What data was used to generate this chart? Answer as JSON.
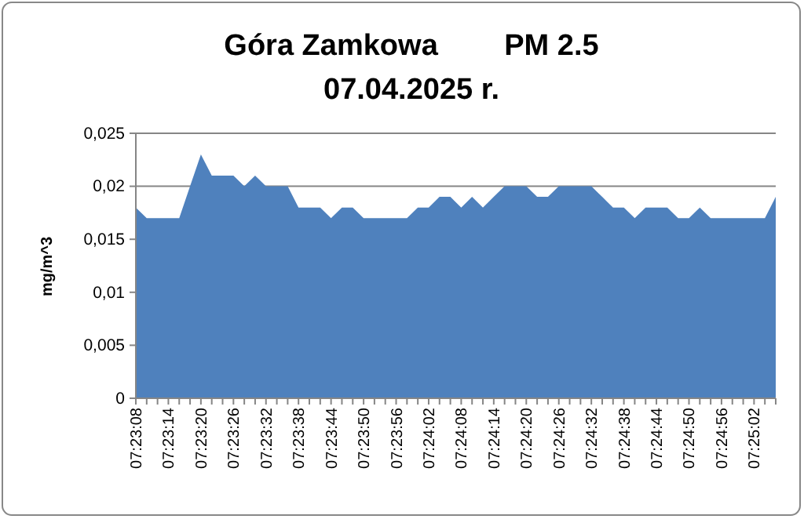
{
  "chart_data": {
    "type": "area",
    "title": "Góra Zamkowa        PM 2.5\n07.04.2025 r.",
    "ylabel": "mg/m^3",
    "categories": [
      "07:23:08",
      null,
      null,
      "07:23:14",
      null,
      null,
      "07:23:20",
      null,
      null,
      "07:23:26",
      null,
      null,
      "07:23:32",
      null,
      null,
      "07:23:38",
      null,
      null,
      "07:23:44",
      null,
      null,
      "07:23:50",
      null,
      null,
      "07:23:56",
      null,
      null,
      "07:24:02",
      null,
      null,
      "07:24:08",
      null,
      null,
      "07:24:14",
      null,
      null,
      "07:24:20",
      null,
      null,
      "07:24:26",
      null,
      null,
      "07:24:32",
      null,
      null,
      "07:24:38",
      null,
      null,
      "07:24:44",
      null,
      null,
      "07:24:50",
      null,
      null,
      "07:24:56",
      null,
      null,
      "07:25:02",
      null,
      null
    ],
    "series": [
      {
        "color": "#4f81bd",
        "values": [
          0.018,
          0.017,
          0.017,
          0.017,
          0.017,
          0.02,
          0.023,
          0.021,
          0.021,
          0.021,
          0.02,
          0.021,
          0.02,
          0.02,
          0.02,
          0.018,
          0.018,
          0.018,
          0.017,
          0.018,
          0.018,
          0.017,
          0.017,
          0.017,
          0.017,
          0.017,
          0.018,
          0.018,
          0.019,
          0.019,
          0.018,
          0.019,
          0.018,
          0.019,
          0.02,
          0.02,
          0.02,
          0.019,
          0.019,
          0.02,
          0.02,
          0.02,
          0.02,
          0.019,
          0.018,
          0.018,
          0.017,
          0.018,
          0.018,
          0.018,
          0.017,
          0.017,
          0.018,
          0.017,
          0.017,
          0.017,
          0.017,
          0.017,
          0.017,
          0.019
        ]
      }
    ],
    "ylim": [
      0,
      0.025
    ],
    "yticks": [
      {
        "value": 0,
        "label": "0"
      },
      {
        "value": 0.005,
        "label": "0,005"
      },
      {
        "value": 0.01,
        "label": "0,01"
      },
      {
        "value": 0.015,
        "label": "0,015"
      },
      {
        "value": 0.02,
        "label": "0,02"
      },
      {
        "value": 0.025,
        "label": "0,025"
      }
    ],
    "grid": "y"
  }
}
